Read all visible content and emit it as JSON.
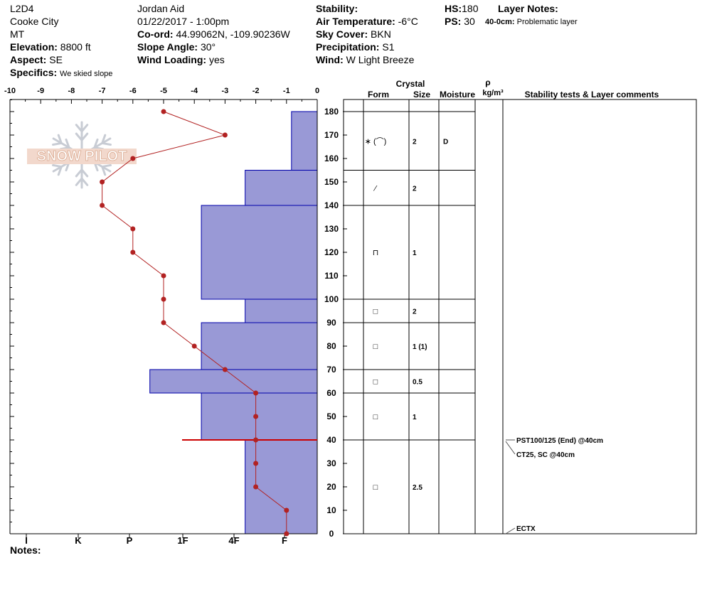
{
  "header": {
    "col1": {
      "name": "L2D4",
      "location": "Cooke City",
      "state": "MT",
      "elevation_label": "Elevation:",
      "elevation_value": "8800 ft",
      "aspect_label": "Aspect:",
      "aspect_value": "SE",
      "specifics_label": "Specifics:",
      "specifics_value": "We skied slope"
    },
    "col2": {
      "observer": "Jordan Aid",
      "datetime": "01/22/2017 - 1:00pm",
      "coord_label": "Co-ord:",
      "coord_value": "44.99062N, -109.90236W",
      "slope_label": "Slope Angle:",
      "slope_value": "30°",
      "wind_loading_label": "Wind Loading:",
      "wind_loading_value": "yes"
    },
    "col3": {
      "stability_label": "Stability:",
      "stability_value": "",
      "air_temp_label": "Air Temperature:",
      "air_temp_value": "-6°C",
      "sky_label": "Sky Cover:",
      "sky_value": "BKN",
      "precip_label": "Precipitation:",
      "precip_value": "S1",
      "wind_label": "Wind:",
      "wind_value": "W Light Breeze"
    },
    "col4": {
      "hs_label": "HS:",
      "hs_value": "180",
      "ps_label": "PS:",
      "ps_value": "30",
      "layer_notes_label": "Layer Notes:",
      "layer_note_depth": "40-0cm:",
      "layer_note_text": "Problematic layer"
    }
  },
  "watermark": {
    "text": "SNOW PILOT"
  },
  "notes_label": "Notes:",
  "table_headers": {
    "crystal": "Crystal",
    "form": "Form",
    "size": "Size",
    "moisture": "Moisture",
    "rho": "ρ",
    "density_unit": "kg/m³",
    "stability": "Stability tests & Layer comments"
  },
  "colors": {
    "hardness_fill": "#9999d6",
    "hardness_stroke": "#0000aa",
    "temp_line": "#b22222",
    "weak_layer": "#cc0000"
  },
  "chart_data": {
    "type": "snow-profile",
    "temp_axis": {
      "min": -10,
      "max": 0,
      "ticks": [
        -10,
        -9,
        -8,
        -7,
        -6,
        -5,
        -4,
        -3,
        -2,
        -1,
        0
      ]
    },
    "depth_axis": {
      "min": 0,
      "max": 180,
      "ticks": [
        0,
        10,
        20,
        30,
        40,
        50,
        60,
        70,
        80,
        90,
        100,
        110,
        120,
        130,
        140,
        150,
        160,
        170,
        180
      ]
    },
    "hardness_axis": {
      "labels": [
        "I",
        "K",
        "P",
        "1F",
        "4F",
        "F"
      ]
    },
    "temperature_profile": [
      {
        "depth": 180,
        "temp": -5
      },
      {
        "depth": 170,
        "temp": -3
      },
      {
        "depth": 160,
        "temp": -6
      },
      {
        "depth": 150,
        "temp": -7
      },
      {
        "depth": 140,
        "temp": -7
      },
      {
        "depth": 130,
        "temp": -6
      },
      {
        "depth": 120,
        "temp": -6
      },
      {
        "depth": 110,
        "temp": -5
      },
      {
        "depth": 100,
        "temp": -5
      },
      {
        "depth": 90,
        "temp": -5
      },
      {
        "depth": 80,
        "temp": -4
      },
      {
        "depth": 70,
        "temp": -3
      },
      {
        "depth": 60,
        "temp": -2
      },
      {
        "depth": 50,
        "temp": -2
      },
      {
        "depth": 40,
        "temp": -2
      },
      {
        "depth": 30,
        "temp": -2
      },
      {
        "depth": 20,
        "temp": -2
      },
      {
        "depth": 10,
        "temp": -1
      },
      {
        "depth": 0,
        "temp": -1
      }
    ],
    "hardness_layers": [
      {
        "top": 180,
        "bottom": 155,
        "hardness": 1
      },
      {
        "top": 155,
        "bottom": 140,
        "hardness": 2.8
      },
      {
        "top": 140,
        "bottom": 100,
        "hardness": 4.5
      },
      {
        "top": 100,
        "bottom": 90,
        "hardness": 2.8
      },
      {
        "top": 90,
        "bottom": 70,
        "hardness": 4.5
      },
      {
        "top": 70,
        "bottom": 60,
        "hardness": 6.5
      },
      {
        "top": 60,
        "bottom": 40,
        "hardness": 4.5
      },
      {
        "top": 40,
        "bottom": 0,
        "hardness": 2.8
      }
    ],
    "weak_layer_depth": 40,
    "layers": [
      {
        "top": 180,
        "bottom": 155,
        "form": "∗ (⌒)",
        "size": "2",
        "moisture": "D"
      },
      {
        "top": 155,
        "bottom": 140,
        "form": "⁄",
        "size": "2",
        "moisture": ""
      },
      {
        "top": 140,
        "bottom": 100,
        "form": "⊓",
        "size": "1",
        "moisture": ""
      },
      {
        "top": 100,
        "bottom": 90,
        "form": "□",
        "size": "2",
        "moisture": ""
      },
      {
        "top": 90,
        "bottom": 70,
        "form": "□",
        "size": "1 (1)",
        "moisture": ""
      },
      {
        "top": 70,
        "bottom": 60,
        "form": "□",
        "size": "0.5",
        "moisture": ""
      },
      {
        "top": 60,
        "bottom": 40,
        "form": "□",
        "size": "1",
        "moisture": ""
      },
      {
        "top": 40,
        "bottom": 0,
        "form": "□",
        "size": "2.5",
        "moisture": ""
      }
    ],
    "stability_tests": [
      {
        "depth": 40,
        "text": "PST100/125 (End) @40cm"
      },
      {
        "depth": 40,
        "text": "CT25, SC @40cm"
      },
      {
        "depth": 0,
        "text": "ECTX"
      }
    ]
  }
}
